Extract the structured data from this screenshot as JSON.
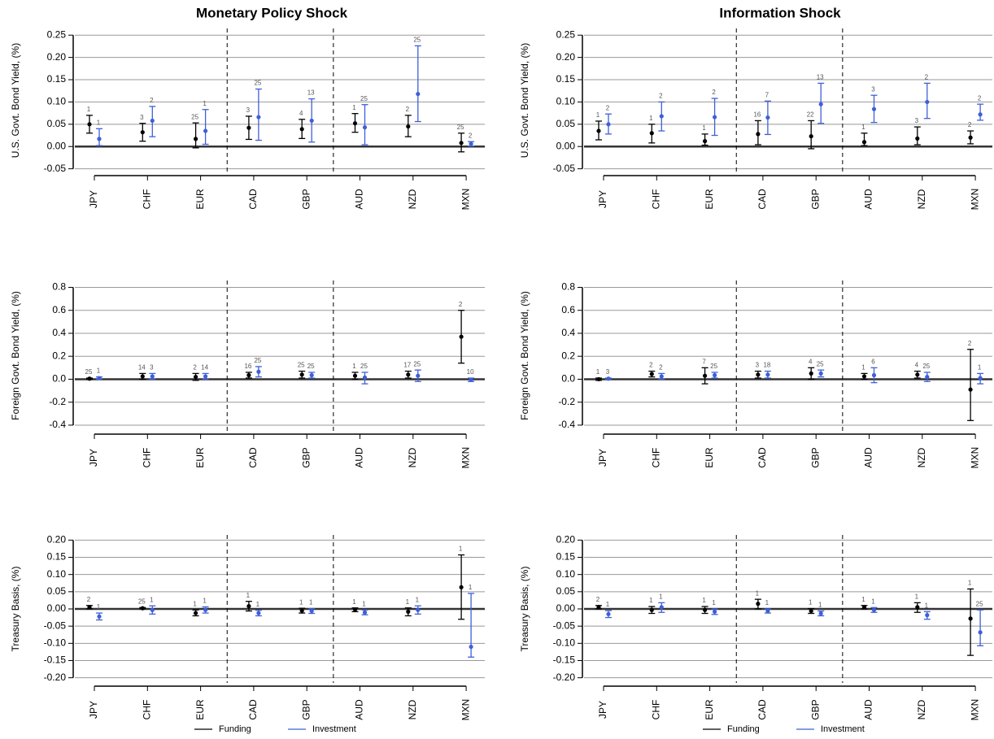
{
  "chart_data": [
    {
      "type": "errorbar",
      "title": "Monetary Policy Shock",
      "y_label": "U.S. Govt. Bond Yield, (%)",
      "categories": [
        "JPY",
        "CHF",
        "EUR",
        "CAD",
        "GBP",
        "AUD",
        "NZD",
        "MXN"
      ],
      "ylim": [
        -0.058,
        0.265
      ],
      "yticks": [
        -0.05,
        {
          "value": 0,
          "label": "0.00"
        },
        0.05,
        {
          "value": 0.1,
          "label": "0.10"
        },
        0.15,
        {
          "value": 0.2,
          "label": "0.20"
        },
        0.25
      ],
      "grid": true,
      "legend": false,
      "series": [
        {
          "name": "Funding",
          "color": "#000000",
          "values": [
            0.05,
            0.032,
            0.017,
            0.042,
            0.039,
            0.052,
            0.045,
            0.008
          ],
          "lower": [
            0.03,
            0.012,
            -0.003,
            0.016,
            0.018,
            0.032,
            0.022,
            -0.012
          ],
          "upper": [
            0.07,
            0.052,
            0.053,
            0.068,
            0.061,
            0.074,
            0.07,
            0.03
          ],
          "top_labels": [
            1,
            3,
            25,
            3,
            4,
            1,
            2,
            25
          ]
        },
        {
          "name": "Investment",
          "color": "#3f5fd8",
          "values": [
            0.017,
            0.058,
            0.035,
            0.066,
            0.058,
            0.043,
            0.118,
            0.006
          ],
          "lower": [
            0.002,
            0.022,
            0.005,
            0.014,
            0.01,
            0.004,
            0.056,
            0.001
          ],
          "upper": [
            0.04,
            0.09,
            0.083,
            0.129,
            0.107,
            0.094,
            0.226,
            0.011
          ],
          "top_labels": [
            1,
            2,
            1,
            25,
            13,
            25,
            25,
            2
          ]
        }
      ]
    },
    {
      "type": "errorbar",
      "title": "Information Shock",
      "y_label": "U.S. Govt. Bond Yield, (%)",
      "categories": [
        "JPY",
        "CHF",
        "EUR",
        "CAD",
        "GBP",
        "AUD",
        "NZD",
        "MXN"
      ],
      "ylim": [
        -0.058,
        0.265
      ],
      "yticks": [
        -0.05,
        {
          "value": 0,
          "label": "0.00"
        },
        0.05,
        {
          "value": 0.1,
          "label": "0.10"
        },
        0.15,
        {
          "value": 0.2,
          "label": "0.20"
        },
        0.25
      ],
      "grid": true,
      "legend": false,
      "series": [
        {
          "name": "Funding",
          "color": "#000000",
          "values": [
            0.035,
            0.03,
            0.012,
            0.028,
            0.023,
            0.01,
            0.018,
            0.02
          ],
          "lower": [
            0.015,
            0.008,
            0.003,
            0.004,
            -0.005,
            0.002,
            0.004,
            0.006
          ],
          "upper": [
            0.057,
            0.05,
            0.028,
            0.058,
            0.058,
            0.03,
            0.044,
            0.035
          ],
          "top_labels": [
            1,
            1,
            1,
            16,
            22,
            1,
            3,
            2
          ]
        },
        {
          "name": "Investment",
          "color": "#3f5fd8",
          "values": [
            0.05,
            0.068,
            0.066,
            0.065,
            0.095,
            0.084,
            0.1,
            0.072
          ],
          "lower": [
            0.028,
            0.035,
            0.025,
            0.027,
            0.052,
            0.054,
            0.063,
            0.059
          ],
          "upper": [
            0.073,
            0.1,
            0.108,
            0.102,
            0.142,
            0.115,
            0.142,
            0.095
          ],
          "top_labels": [
            2,
            2,
            2,
            7,
            13,
            3,
            2,
            2
          ]
        }
      ]
    },
    {
      "type": "errorbar",
      "y_label": "Foreign Govt. Bond Yield, (%)",
      "categories": [
        "JPY",
        "CHF",
        "EUR",
        "CAD",
        "GBP",
        "AUD",
        "NZD",
        "MXN"
      ],
      "ylim": [
        -0.45,
        0.86
      ],
      "yticks": [
        -0.4,
        -0.2,
        {
          "value": 0,
          "label": "0.0"
        },
        0.2,
        0.4,
        0.6,
        0.8
      ],
      "grid": true,
      "legend": false,
      "series": [
        {
          "name": "Funding",
          "color": "#000000",
          "values": [
            0.005,
            0.025,
            0.02,
            0.035,
            0.04,
            0.03,
            0.04,
            0.37
          ],
          "lower": [
            0,
            0,
            -0.01,
            0.01,
            0.01,
            0,
            0.01,
            0.14
          ],
          "upper": [
            0.01,
            0.05,
            0.05,
            0.06,
            0.07,
            0.06,
            0.07,
            0.6
          ],
          "top_labels": [
            25,
            14,
            2,
            16,
            25,
            1,
            17,
            2
          ]
        },
        {
          "name": "Investment",
          "color": "#3f5fd8",
          "values": [
            0.01,
            0.025,
            0.025,
            0.065,
            0.035,
            0.015,
            0.03,
            -0.005
          ],
          "lower": [
            0,
            0,
            0,
            0.02,
            0.01,
            -0.04,
            -0.02,
            -0.02
          ],
          "upper": [
            0.02,
            0.05,
            0.05,
            0.11,
            0.06,
            0.06,
            0.08,
            0.01
          ],
          "top_labels": [
            1,
            3,
            14,
            25,
            25,
            25,
            25,
            10
          ]
        }
      ]
    },
    {
      "type": "errorbar",
      "y_label": "Foreign Govt. Bond Yield, (%)",
      "categories": [
        "JPY",
        "CHF",
        "EUR",
        "CAD",
        "GBP",
        "AUD",
        "NZD",
        "MXN"
      ],
      "ylim": [
        -0.45,
        0.86
      ],
      "yticks": [
        -0.4,
        -0.2,
        {
          "value": 0,
          "label": "0.0"
        },
        0.2,
        0.4,
        0.6,
        0.8
      ],
      "grid": true,
      "legend": false,
      "series": [
        {
          "name": "Funding",
          "color": "#000000",
          "values": [
            0,
            0.045,
            0.03,
            0.04,
            0.05,
            0.025,
            0.04,
            -0.09
          ],
          "lower": [
            -0.01,
            0.02,
            -0.04,
            0.01,
            0,
            0,
            0.01,
            -0.36
          ],
          "upper": [
            0.01,
            0.07,
            0.1,
            0.07,
            0.1,
            0.05,
            0.07,
            0.26
          ],
          "top_labels": [
            1,
            2,
            7,
            3,
            4,
            1,
            4,
            2
          ]
        },
        {
          "name": "Investment",
          "color": "#3f5fd8",
          "values": [
            0.005,
            0.025,
            0.035,
            0.04,
            0.05,
            0.035,
            0.02,
            0.01
          ],
          "lower": [
            0,
            0,
            0.01,
            0.01,
            0.02,
            -0.03,
            -0.02,
            -0.04
          ],
          "upper": [
            0.01,
            0.05,
            0.06,
            0.07,
            0.08,
            0.1,
            0.06,
            0.05
          ],
          "top_labels": [
            3,
            2,
            25,
            18,
            25,
            6,
            25,
            1
          ]
        }
      ]
    },
    {
      "type": "errorbar",
      "y_label": "Treasury Basis, (%)",
      "categories": [
        "JPY",
        "CHF",
        "EUR",
        "CAD",
        "GBP",
        "AUD",
        "NZD",
        "MXN"
      ],
      "ylim": [
        -0.215,
        0.215
      ],
      "yticks": [
        {
          "value": -0.2,
          "label": "-0.20"
        },
        -0.15,
        {
          "value": -0.1,
          "label": "-0.10"
        },
        -0.05,
        {
          "value": 0,
          "label": "0.00"
        },
        0.05,
        {
          "value": 0.1,
          "label": "0.10"
        },
        0.15,
        {
          "value": 0.2,
          "label": "0.20"
        }
      ],
      "grid": true,
      "legend": true,
      "series": [
        {
          "name": "Funding",
          "color": "#000000",
          "values": [
            0.005,
            0.002,
            -0.012,
            0.008,
            -0.005,
            -0.002,
            -0.008,
            0.063
          ],
          "lower": [
            0,
            0,
            -0.02,
            -0.006,
            -0.012,
            -0.008,
            -0.02,
            -0.03
          ],
          "upper": [
            0.01,
            0.004,
            -0.003,
            0.022,
            0.002,
            0.003,
            0.003,
            0.157
          ],
          "top_labels": [
            2,
            25,
            1,
            1,
            1,
            1,
            1,
            1
          ]
        },
        {
          "name": "Investment",
          "color": "#3f5fd8",
          "values": [
            -0.022,
            -0.003,
            -0.003,
            -0.012,
            -0.006,
            -0.01,
            -0.003,
            -0.11
          ],
          "lower": [
            -0.032,
            -0.015,
            -0.012,
            -0.02,
            -0.013,
            -0.017,
            -0.015,
            -0.14
          ],
          "upper": [
            -0.012,
            0.009,
            0.006,
            -0.004,
            0.001,
            -0.003,
            0.009,
            0.045
          ],
          "top_labels": [
            1,
            1,
            1,
            1,
            1,
            1,
            1,
            1
          ]
        }
      ]
    },
    {
      "type": "errorbar",
      "y_label": "Treasury Basis, (%)",
      "categories": [
        "JPY",
        "CHF",
        "EUR",
        "CAD",
        "GBP",
        "AUD",
        "NZD",
        "MXN"
      ],
      "ylim": [
        -0.215,
        0.215
      ],
      "yticks": [
        {
          "value": -0.2,
          "label": "-0.20"
        },
        -0.15,
        {
          "value": -0.1,
          "label": "-0.10"
        },
        -0.05,
        {
          "value": 0,
          "label": "0.00"
        },
        0.05,
        {
          "value": 0.1,
          "label": "0.10"
        },
        0.15,
        {
          "value": 0.2,
          "label": "0.20"
        }
      ],
      "grid": true,
      "legend": true,
      "series": [
        {
          "name": "Funding",
          "color": "#000000",
          "values": [
            0.005,
            -0.003,
            -0.003,
            0.015,
            -0.006,
            0.005,
            0.005,
            -0.028
          ],
          "lower": [
            0,
            -0.013,
            -0.013,
            0,
            -0.013,
            0,
            -0.01,
            -0.135
          ],
          "upper": [
            0.01,
            0.007,
            0.007,
            0.028,
            0.001,
            0.01,
            0.018,
            0.058
          ],
          "top_labels": [
            2,
            1,
            1,
            1,
            1,
            1,
            1,
            1
          ]
        },
        {
          "name": "Investment",
          "color": "#3f5fd8",
          "values": [
            -0.015,
            0.005,
            -0.008,
            -0.006,
            -0.013,
            -0.003,
            -0.018,
            -0.068
          ],
          "lower": [
            -0.025,
            -0.01,
            -0.016,
            -0.012,
            -0.02,
            -0.01,
            -0.03,
            -0.107
          ],
          "upper": [
            -0.005,
            0.018,
            0,
            0,
            -0.006,
            0.004,
            -0.008,
            -0.003
          ],
          "top_labels": [
            1,
            1,
            1,
            1,
            1,
            1,
            1,
            25
          ]
        }
      ]
    }
  ]
}
